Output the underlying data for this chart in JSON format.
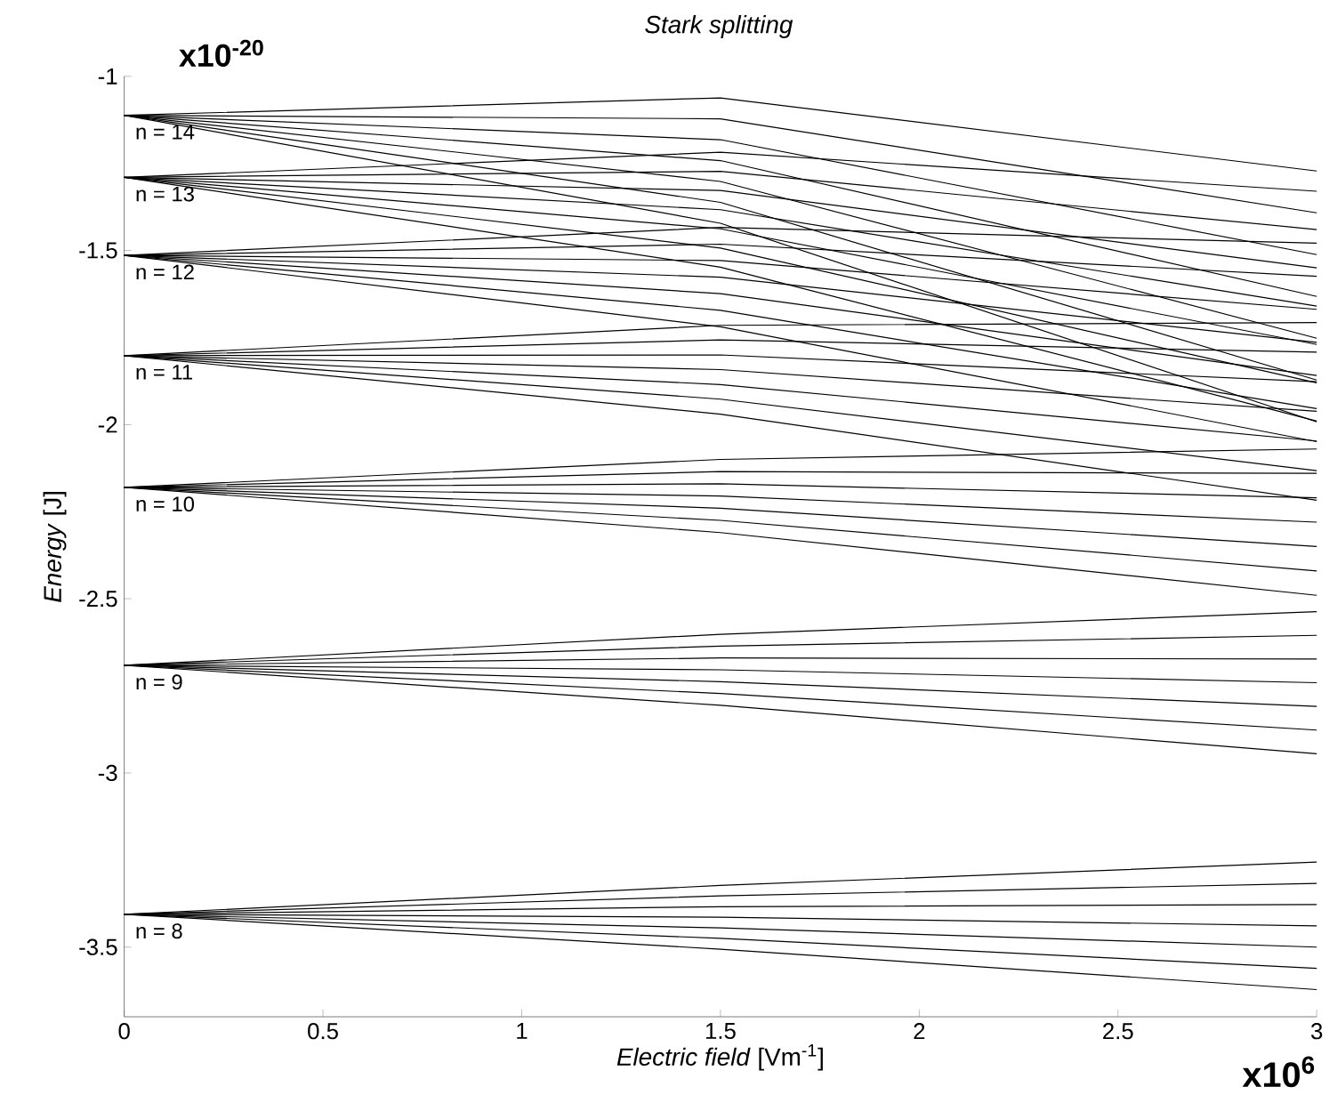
{
  "chart_data": {
    "type": "line",
    "title": "*Stark splitting*",
    "xlabel": "*Electric field* [Vm$^{-1}$]",
    "ylabel": "*Energy* [J]",
    "x": [
      0,
      1.5,
      3
    ],
    "xlim": [
      0,
      3
    ],
    "ylim": [
      -3.7,
      -1
    ],
    "xticks": [
      0,
      0.5,
      1,
      1.5,
      2,
      2.5,
      3
    ],
    "yticks": [
      -3.5,
      -3,
      -2.5,
      -2,
      -1.5,
      -1
    ],
    "annotations": [
      "x10$^{-20}$",
      "x10$^{6}$",
      {
        "text": "n = 14",
        "y": -1.112
      },
      {
        "text": "n = 13",
        "y": -1.29
      },
      {
        "text": "n = 12",
        "y": -1.514
      },
      {
        "text": "n = 11",
        "y": -1.802
      },
      {
        "text": "n = 10",
        "y": -2.18
      },
      {
        "text": "n = 9",
        "y": -2.691
      },
      {
        "text": "n = 8",
        "y": -3.406
      }
    ],
    "series": [
      {
        "color": "#000000",
        "values": [
          -3.406,
          -3.323,
          -3.256
        ]
      },
      {
        "color": "#000000",
        "values": [
          -3.406,
          -3.353,
          -3.317
        ]
      },
      {
        "color": "#000000",
        "values": [
          -3.406,
          -3.384,
          -3.378
        ]
      },
      {
        "color": "#000000",
        "values": [
          -3.406,
          -3.414,
          -3.439
        ]
      },
      {
        "color": "#000000",
        "values": [
          -3.406,
          -3.445,
          -3.5
        ]
      },
      {
        "color": "#000000",
        "values": [
          -3.406,
          -3.475,
          -3.561
        ]
      },
      {
        "color": "#000000",
        "values": [
          -3.406,
          -3.506,
          -3.622
        ]
      },
      {
        "color": "#000000",
        "values": [
          -2.691,
          -2.602,
          -2.537
        ]
      },
      {
        "color": "#000000",
        "values": [
          -2.691,
          -2.636,
          -2.605
        ]
      },
      {
        "color": "#000000",
        "values": [
          -2.691,
          -2.67,
          -2.673
        ]
      },
      {
        "color": "#000000",
        "values": [
          -2.691,
          -2.704,
          -2.741
        ]
      },
      {
        "color": "#000000",
        "values": [
          -2.691,
          -2.738,
          -2.809
        ]
      },
      {
        "color": "#000000",
        "values": [
          -2.691,
          -2.772,
          -2.877
        ]
      },
      {
        "color": "#000000",
        "values": [
          -2.691,
          -2.806,
          -2.945
        ]
      },
      {
        "color": "#000000",
        "values": [
          -2.18,
          -2.1,
          -2.07
        ]
      },
      {
        "color": "#000000",
        "values": [
          -2.18,
          -2.135,
          -2.14
        ]
      },
      {
        "color": "#000000",
        "values": [
          -2.18,
          -2.17,
          -2.21
        ]
      },
      {
        "color": "#000000",
        "values": [
          -2.18,
          -2.205,
          -2.28
        ]
      },
      {
        "color": "#000000",
        "values": [
          -2.18,
          -2.24,
          -2.35
        ]
      },
      {
        "color": "#000000",
        "values": [
          -2.18,
          -2.275,
          -2.42
        ]
      },
      {
        "color": "#000000",
        "values": [
          -2.18,
          -2.31,
          -2.49
        ]
      },
      {
        "color": "#000000",
        "values": [
          -1.802,
          -1.715,
          -1.707
        ]
      },
      {
        "color": "#000000",
        "values": [
          -1.802,
          -1.757,
          -1.792
        ]
      },
      {
        "color": "#000000",
        "values": [
          -1.802,
          -1.8,
          -1.877
        ]
      },
      {
        "color": "#000000",
        "values": [
          -1.802,
          -1.842,
          -1.962
        ]
      },
      {
        "color": "#000000",
        "values": [
          -1.802,
          -1.885,
          -2.047
        ]
      },
      {
        "color": "#000000",
        "values": [
          -1.802,
          -1.927,
          -2.132
        ]
      },
      {
        "color": "#000000",
        "values": [
          -1.802,
          -1.97,
          -2.217
        ]
      },
      {
        "color": "#000000",
        "values": [
          -1.514,
          -1.434,
          -1.479
        ]
      },
      {
        "color": "#000000",
        "values": [
          -1.514,
          -1.482,
          -1.574
        ]
      },
      {
        "color": "#000000",
        "values": [
          -1.514,
          -1.529,
          -1.669
        ]
      },
      {
        "color": "#000000",
        "values": [
          -1.514,
          -1.577,
          -1.764
        ]
      },
      {
        "color": "#000000",
        "values": [
          -1.514,
          -1.624,
          -1.859
        ]
      },
      {
        "color": "#000000",
        "values": [
          -1.514,
          -1.672,
          -1.954
        ]
      },
      {
        "color": "#000000",
        "values": [
          -1.514,
          -1.719,
          -2.049
        ]
      },
      {
        "color": "#000000",
        "values": [
          -1.29,
          -1.218,
          -1.33
        ]
      },
      {
        "color": "#000000",
        "values": [
          -1.29,
          -1.273,
          -1.44
        ]
      },
      {
        "color": "#000000",
        "values": [
          -1.29,
          -1.328,
          -1.55
        ]
      },
      {
        "color": "#000000",
        "values": [
          -1.29,
          -1.383,
          -1.66
        ]
      },
      {
        "color": "#000000",
        "values": [
          -1.29,
          -1.438,
          -1.77
        ]
      },
      {
        "color": "#000000",
        "values": [
          -1.29,
          -1.493,
          -1.88
        ]
      },
      {
        "color": "#000000",
        "values": [
          -1.29,
          -1.548,
          -1.99
        ]
      },
      {
        "color": "#000000",
        "values": [
          -1.112,
          -1.062,
          -1.272
        ]
      },
      {
        "color": "#000000",
        "values": [
          -1.112,
          -1.122,
          -1.392
        ]
      },
      {
        "color": "#000000",
        "values": [
          -1.112,
          -1.182,
          -1.512
        ]
      },
      {
        "color": "#000000",
        "values": [
          -1.112,
          -1.242,
          -1.632
        ]
      },
      {
        "color": "#000000",
        "values": [
          -1.112,
          -1.302,
          -1.752
        ]
      },
      {
        "color": "#000000",
        "values": [
          -1.112,
          -1.362,
          -1.872
        ]
      },
      {
        "color": "#000000",
        "values": [
          -1.112,
          -1.422,
          -1.992
        ]
      }
    ]
  }
}
